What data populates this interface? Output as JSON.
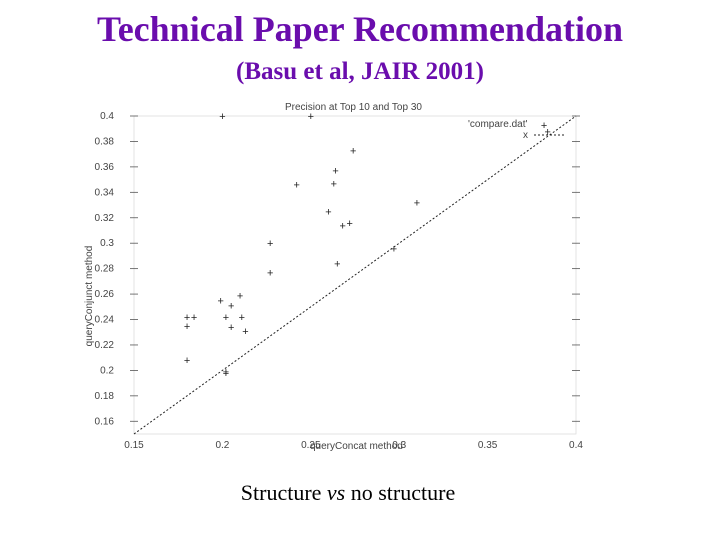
{
  "slide": {
    "title": "Technical Paper Recommendation",
    "subtitle": "(Basu et al, JAIR 2001)",
    "caption_pre": "Structure ",
    "caption_vs": "vs",
    "caption_post": " no structure",
    "title_color": "#6a0dad"
  },
  "chart_data": {
    "type": "scatter",
    "title": "Precision at Top 10 and Top 30",
    "xlabel": "queryConcat method",
    "ylabel": "queryConjunct method",
    "xlim": [
      0.15,
      0.4
    ],
    "ylim": [
      0.15,
      0.4
    ],
    "xticks": [
      "0.15",
      "0.2",
      "0.25",
      "0.3",
      "0.35",
      "0.4"
    ],
    "xtick_values": [
      0.15,
      0.2,
      0.25,
      0.3,
      0.35,
      0.4
    ],
    "yticks": [
      "0.16",
      "0.18",
      "0.2",
      "0.22",
      "0.24",
      "0.26",
      "0.28",
      "0.3",
      "0.32",
      "0.34",
      "0.36",
      "0.38",
      "0.4"
    ],
    "ytick_values": [
      0.16,
      0.18,
      0.2,
      0.22,
      0.24,
      0.26,
      0.28,
      0.3,
      0.32,
      0.34,
      0.36,
      0.38,
      0.4
    ],
    "legend": [
      {
        "label": "'compare.dat'",
        "marker": "+"
      },
      {
        "label": "x",
        "style": "dashed"
      }
    ],
    "legend_position": "top-right",
    "grid": false,
    "series": [
      {
        "name": "'compare.dat'",
        "marker": "+",
        "points": [
          [
            0.384,
            0.388
          ],
          [
            0.274,
            0.373
          ],
          [
            0.263,
            0.347
          ],
          [
            0.268,
            0.314
          ],
          [
            0.272,
            0.316
          ],
          [
            0.227,
            0.277
          ],
          [
            0.21,
            0.259
          ],
          [
            0.199,
            0.255
          ],
          [
            0.205,
            0.251
          ],
          [
            0.18,
            0.242
          ],
          [
            0.202,
            0.242
          ],
          [
            0.211,
            0.242
          ],
          [
            0.205,
            0.234
          ],
          [
            0.213,
            0.231
          ],
          [
            0.202,
            0.199
          ],
          [
            0.202,
            0.198
          ],
          [
            0.2,
            0.4
          ],
          [
            0.25,
            0.4
          ],
          [
            0.264,
            0.357
          ],
          [
            0.242,
            0.346
          ],
          [
            0.26,
            0.325
          ],
          [
            0.31,
            0.332
          ],
          [
            0.227,
            0.3
          ],
          [
            0.265,
            0.284
          ],
          [
            0.18,
            0.235
          ],
          [
            0.184,
            0.242
          ],
          [
            0.18,
            0.208
          ],
          [
            0.297,
            0.296
          ]
        ]
      },
      {
        "name": "x",
        "style": "dashed",
        "x": [
          0.15,
          0.4
        ],
        "y": [
          0.15,
          0.4
        ]
      }
    ]
  }
}
